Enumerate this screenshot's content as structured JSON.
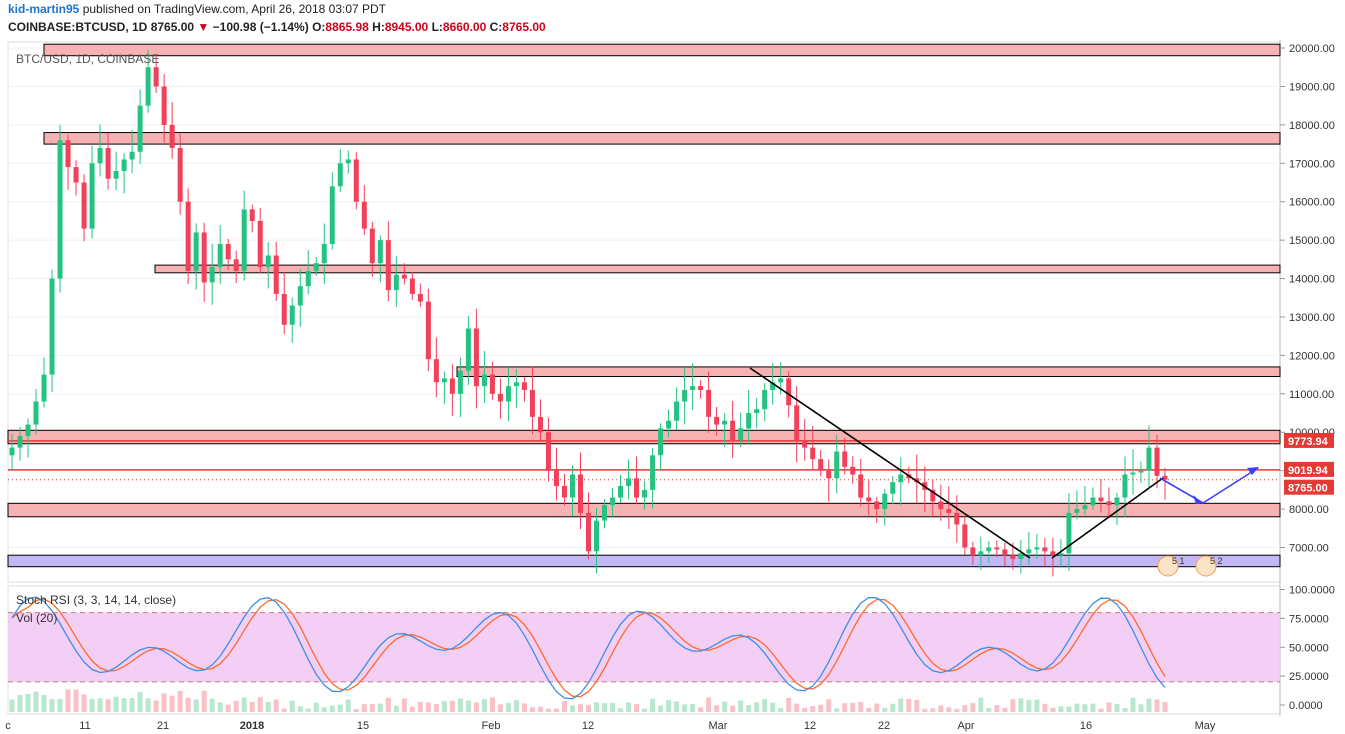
{
  "header": {
    "author": "kid-martin95",
    "published_text": "published on TradingView.com, April 26, 2018 03:07 PDT",
    "symbol": "COINBASE:BTCUSD, 1D",
    "last": "8765.00",
    "change": "−100.98 (−1.14%)",
    "open_label": "O:",
    "open": "8865.98",
    "high_label": "H:",
    "high": "8945.00",
    "low_label": "L:",
    "low": "8660.00",
    "close_label": "C:",
    "close": "8765.00"
  },
  "chart_data": {
    "type": "candlestick",
    "watermark": "BTC/USD, 1D, COINBASE",
    "y_ticks": [
      "20000.00",
      "19000.00",
      "18000.00",
      "17000.00",
      "16000.00",
      "15000.00",
      "14000.00",
      "13000.00",
      "12000.00",
      "11000.00",
      "10000.00",
      "9000.00",
      "8000.00",
      "7000.00"
    ],
    "x_ticks": [
      "c",
      "11",
      "21",
      "2018",
      "15",
      "Feb",
      "12",
      "Mar",
      "12",
      "22",
      "Apr",
      "16",
      "May"
    ],
    "price_labels": {
      "level_a": "9773.94",
      "level_b": "9019.94",
      "last": "8765.00"
    },
    "zones": [
      {
        "low": 19800,
        "high": 20100,
        "color": "#f7b3b3"
      },
      {
        "low": 17500,
        "high": 17800,
        "color": "#f7b3b3"
      },
      {
        "low": 14150,
        "high": 14350,
        "color": "#f7b3b3"
      },
      {
        "low": 11450,
        "high": 11700,
        "color": "#f7b3b3"
      },
      {
        "low": 9700,
        "high": 10050,
        "color": "#f7b3b3"
      },
      {
        "low": 7800,
        "high": 8150,
        "color": "#f7b3b3"
      },
      {
        "low": 6500,
        "high": 6800,
        "color": "#c4b7f5"
      }
    ],
    "closes": [
      9600,
      9900,
      10200,
      10800,
      11500,
      14000,
      17600,
      16900,
      16500,
      15300,
      17000,
      17400,
      16600,
      16800,
      17100,
      17300,
      18500,
      19500,
      19000,
      18000,
      17400,
      16000,
      14200,
      15200,
      13900,
      14300,
      14900,
      14500,
      14200,
      15800,
      15500,
      14300,
      14600,
      13600,
      12800,
      13300,
      13800,
      14200,
      14400,
      14900,
      16400,
      17000,
      17100,
      16000,
      15300,
      14400,
      15000,
      13700,
      14100,
      14000,
      13600,
      13400,
      11900,
      11300,
      11400,
      11000,
      11600,
      12700,
      11200,
      11500,
      11000,
      10800,
      11200,
      11300,
      11100,
      10400,
      10000,
      9000,
      8600,
      8300,
      8900,
      7900,
      6900,
      7700,
      8100,
      8300,
      8600,
      8800,
      8300,
      8500,
      9400,
      10100,
      10300,
      10800,
      11100,
      11200,
      11100,
      10400,
      10200,
      10300,
      9800,
      10100,
      10500,
      10600,
      11100,
      11300,
      11400,
      10700,
      9800,
      9600,
      9300,
      9000,
      8800,
      9500,
      9100,
      8900,
      8300,
      8200,
      8000,
      8400,
      8700,
      8900,
      8800,
      8700,
      8500,
      8200,
      8000,
      7900,
      7600,
      7000,
      6800,
      6900,
      7000,
      6950,
      6800,
      6700,
      6850,
      6950,
      7000,
      6900,
      6800,
      6850,
      7900,
      8000,
      8100,
      8300,
      8200,
      8100,
      8300,
      8900,
      8950,
      9000,
      9600,
      8865,
      8765
    ],
    "stoch_rsi": {
      "label": "Stoch RSI (3, 3, 14, 14, close)",
      "y_ticks": [
        "100.0000",
        "75.0000",
        "50.0000",
        "25.0000",
        "0.0000"
      ],
      "overbought": 80,
      "oversold": 20
    },
    "volume_label": "Vol (20)",
    "markers": [
      {
        "text": "5 1"
      },
      {
        "text": "5 2"
      }
    ]
  }
}
